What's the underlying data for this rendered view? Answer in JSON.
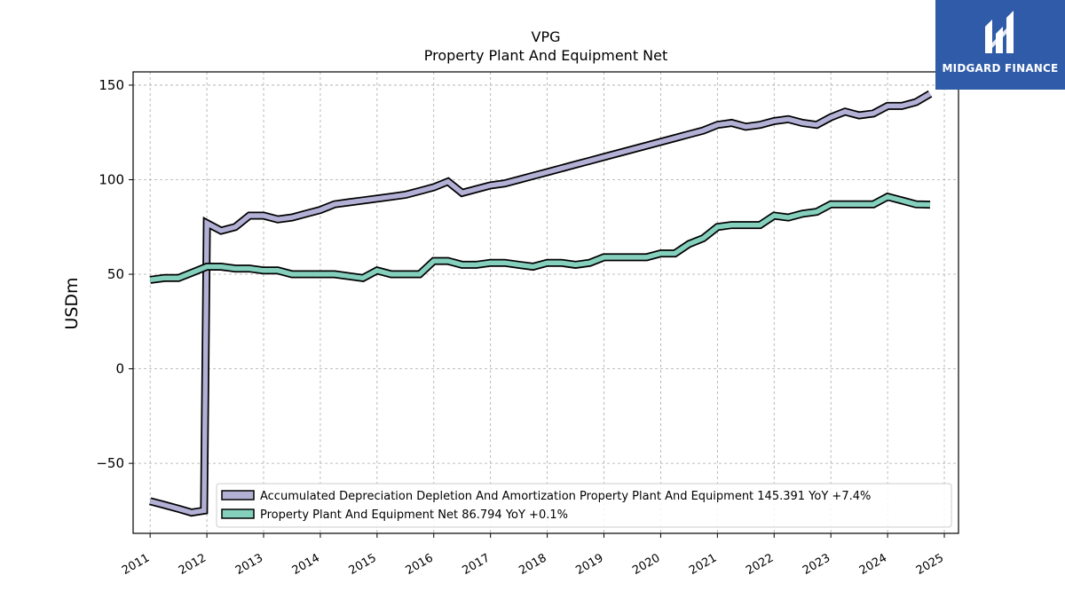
{
  "chart_data": {
    "type": "line",
    "title": "VPG",
    "subtitle": "Property Plant And Equipment Net",
    "ylabel": "USDm",
    "xlabel": "",
    "xlim": [
      2010.7,
      2025.25
    ],
    "ylim": [
      -87,
      157
    ],
    "yticks": [
      -50,
      0,
      50,
      100,
      150
    ],
    "ytick_labels": [
      "−50",
      "0",
      "50",
      "100",
      "150"
    ],
    "xticks": [
      2011,
      2012,
      2013,
      2014,
      2015,
      2016,
      2017,
      2018,
      2019,
      2020,
      2021,
      2022,
      2023,
      2024,
      2025
    ],
    "xtick_labels": [
      "2011",
      "2012",
      "2013",
      "2014",
      "2015",
      "2016",
      "2017",
      "2018",
      "2019",
      "2020",
      "2021",
      "2022",
      "2023",
      "2024",
      "2025"
    ],
    "grid": true,
    "legend_position": "lower-right",
    "series": [
      {
        "name": "Accumulated Depreciation Depletion And Amortization Property Plant And Equipment  145.391 YoY +7.4%",
        "color": "#b3b0d6",
        "x": [
          2011.0,
          2011.25,
          2011.5,
          2011.73,
          2011.95,
          2012.0,
          2012.25,
          2012.5,
          2012.75,
          2013.0,
          2013.25,
          2013.5,
          2013.75,
          2014.0,
          2014.25,
          2014.5,
          2014.75,
          2015.0,
          2015.25,
          2015.5,
          2015.75,
          2016.0,
          2016.25,
          2016.5,
          2016.75,
          2017.0,
          2017.25,
          2017.5,
          2017.75,
          2018.0,
          2018.25,
          2018.5,
          2018.75,
          2019.0,
          2019.25,
          2019.5,
          2019.75,
          2020.0,
          2020.25,
          2020.5,
          2020.75,
          2021.0,
          2021.25,
          2021.5,
          2021.75,
          2022.0,
          2022.25,
          2022.5,
          2022.75,
          2023.0,
          2023.25,
          2023.5,
          2023.75,
          2024.0,
          2024.25,
          2024.5,
          2024.75
        ],
        "values": [
          -70,
          -72,
          -74,
          -76,
          -75,
          77,
          73,
          75,
          81,
          81,
          79,
          80,
          82,
          84,
          87,
          88,
          89,
          90,
          91,
          92,
          94,
          96,
          99,
          93,
          95,
          97,
          98,
          100,
          102,
          104,
          106,
          108,
          110,
          112,
          114,
          116,
          118,
          120,
          122,
          124,
          126,
          129,
          130,
          128,
          129,
          131,
          132,
          130,
          129,
          133,
          136,
          134,
          135,
          139,
          139,
          141,
          145.391
        ]
      },
      {
        "name": "Property Plant And Equipment Net  86.794 YoY +0.1%",
        "color": "#84d0bd",
        "x": [
          2011.0,
          2011.25,
          2011.5,
          2011.75,
          2012.0,
          2012.25,
          2012.5,
          2012.75,
          2013.0,
          2013.25,
          2013.5,
          2013.75,
          2014.0,
          2014.25,
          2014.5,
          2014.75,
          2015.0,
          2015.25,
          2015.5,
          2015.75,
          2016.0,
          2016.25,
          2016.5,
          2016.75,
          2017.0,
          2017.25,
          2017.5,
          2017.75,
          2018.0,
          2018.25,
          2018.5,
          2018.75,
          2019.0,
          2019.25,
          2019.5,
          2019.75,
          2020.0,
          2020.25,
          2020.5,
          2020.75,
          2021.0,
          2021.25,
          2021.5,
          2021.75,
          2022.0,
          2022.25,
          2022.5,
          2022.75,
          2023.0,
          2023.25,
          2023.5,
          2023.75,
          2024.0,
          2024.25,
          2024.5,
          2024.75
        ],
        "values": [
          47,
          48,
          48,
          51,
          54,
          54,
          53,
          53,
          52,
          52,
          50,
          50,
          50,
          50,
          49,
          48,
          52,
          50,
          50,
          50,
          57,
          57,
          55,
          55,
          56,
          56,
          55,
          54,
          56,
          56,
          55,
          56,
          59,
          59,
          59,
          59,
          61,
          61,
          66,
          69,
          75,
          76,
          76,
          76,
          81,
          80,
          82,
          83,
          87,
          87,
          87,
          87,
          91,
          89,
          87,
          86.794
        ]
      }
    ]
  },
  "logo": {
    "brand": "MIDGARD FINANCE",
    "color": "#2f5ba8"
  }
}
